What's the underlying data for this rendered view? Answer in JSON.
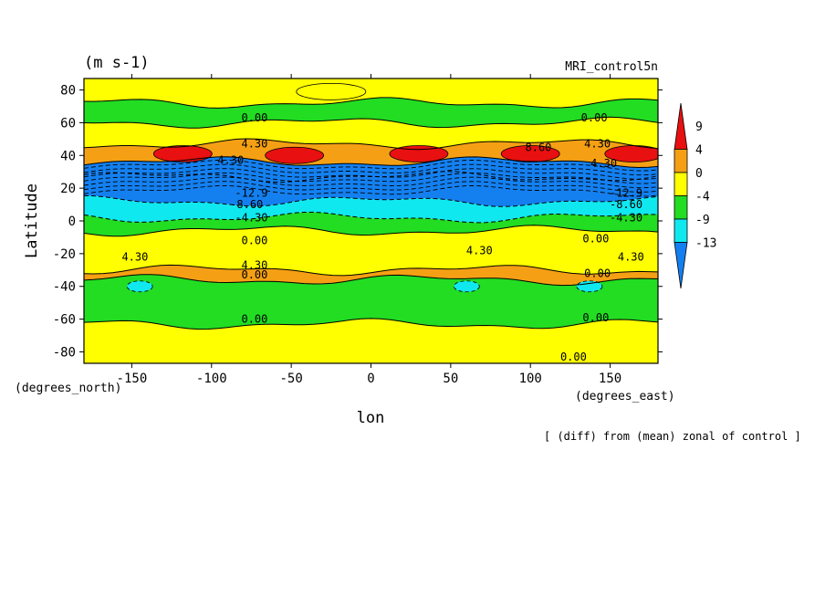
{
  "chart_data": {
    "type": "heatmap",
    "title_left": "(m s-1)",
    "title_right": "MRI_control5n",
    "xlabel": "lon",
    "ylabel": "Latitude",
    "x_units": "(degrees_east)",
    "y_units": "(degrees_north)",
    "footnote": "[ (diff) from (mean) zonal of control ]",
    "xlim": [
      -180,
      180
    ],
    "ylim": [
      -87,
      87
    ],
    "x_ticks": [
      -150,
      -100,
      -50,
      0,
      50,
      100,
      150
    ],
    "x_tick_labels": [
      "-150",
      "-100",
      "-50",
      "0",
      "50",
      "100",
      "150"
    ],
    "y_ticks": [
      80,
      60,
      40,
      20,
      0,
      -20,
      -40,
      -60,
      -80
    ],
    "y_tick_labels": [
      "80",
      "60",
      "40",
      "20",
      "0",
      "-20",
      "-40",
      "-60",
      "-80"
    ],
    "colorbar": {
      "labels": [
        "9",
        "4",
        "0",
        "-4",
        "-9",
        "-13"
      ],
      "colors": [
        "#e81010",
        "#f5a014",
        "#ffff00",
        "#22dd22",
        "#10e8f0",
        "#1480f0"
      ],
      "extend": "both"
    },
    "bands": [
      {
        "lat_from": 87,
        "lat_to": 72,
        "class": "0 to 4",
        "color": "#ffff00"
      },
      {
        "lat_from": 72,
        "lat_to": 60,
        "class": "-4 to 0",
        "color": "#22dd22"
      },
      {
        "lat_from": 60,
        "lat_to": 47,
        "class": "0 to 4",
        "color": "#ffff00"
      },
      {
        "lat_from": 47,
        "lat_to": 36,
        "class": "4 to 9",
        "color": "#f5a014"
      },
      {
        "lat_from": 36,
        "lat_to": 27,
        "class": "-13 to -9",
        "color": "#1480f0"
      },
      {
        "lat_from": 27,
        "lat_to": 12,
        "class": "-13 to -9",
        "color": "#1480f0"
      },
      {
        "lat_from": 12,
        "lat_to": 2,
        "class": "-9 to -4",
        "color": "#10e8f0"
      },
      {
        "lat_from": 2,
        "lat_to": -6,
        "class": "-4 to 0",
        "color": "#22dd22"
      },
      {
        "lat_from": -6,
        "lat_to": -30,
        "class": "0 to 4",
        "color": "#ffff00"
      },
      {
        "lat_from": -30,
        "lat_to": -36,
        "class": "4 to 9",
        "color": "#f5a014"
      },
      {
        "lat_from": -36,
        "lat_to": -63,
        "class": "-4 to 0",
        "color": "#22dd22"
      },
      {
        "lat_from": -63,
        "lat_to": -87,
        "class": "0 to 4",
        "color": "#ffff00"
      }
    ],
    "maxima": [
      {
        "lon": -118,
        "lat": 41,
        "class": ">9",
        "color": "#e81010"
      },
      {
        "lon": -48,
        "lat": 40,
        "class": ">9",
        "color": "#e81010"
      },
      {
        "lon": 30,
        "lat": 41,
        "class": ">9",
        "color": "#e81010"
      },
      {
        "lon": 100,
        "lat": 41,
        "class": ">9",
        "color": "#e81010"
      },
      {
        "lon": 165,
        "lat": 41,
        "class": ">9",
        "color": "#e81010"
      },
      {
        "lon": 60,
        "lat": -40,
        "class": "-9 to -4",
        "color": "#10e8f0"
      },
      {
        "lon": -145,
        "lat": -40,
        "class": "-9 to -4",
        "color": "#10e8f0"
      },
      {
        "lon": 137,
        "lat": -40,
        "class": "-9 to -4",
        "color": "#10e8f0"
      },
      {
        "lon": -25,
        "lat": 79,
        "class": "0 to 4",
        "color": "#ffff00"
      }
    ],
    "contour_labels": [
      {
        "text": "0.00",
        "lon": -73,
        "lat": 63
      },
      {
        "text": "0.00",
        "lon": 140,
        "lat": 63
      },
      {
        "text": "4.30",
        "lon": -73,
        "lat": 47
      },
      {
        "text": "4.30",
        "lon": 142,
        "lat": 47
      },
      {
        "text": "8.60",
        "lon": 105,
        "lat": 45
      },
      {
        "text": "4.30",
        "lon": -88,
        "lat": 37
      },
      {
        "text": "4.30",
        "lon": 146,
        "lat": 35
      },
      {
        "text": "-12.9",
        "lon": -75,
        "lat": 17
      },
      {
        "text": "-12.9",
        "lon": 160,
        "lat": 17
      },
      {
        "text": "-8.60",
        "lon": -78,
        "lat": 10
      },
      {
        "text": "-8.60",
        "lon": 160,
        "lat": 10
      },
      {
        "text": "-4.30",
        "lon": -75,
        "lat": 2
      },
      {
        "text": "-4.30",
        "lon": 160,
        "lat": 2
      },
      {
        "text": "0.00",
        "lon": -73,
        "lat": -12
      },
      {
        "text": "0.00",
        "lon": 141,
        "lat": -11
      },
      {
        "text": "4.30",
        "lon": 68,
        "lat": -18
      },
      {
        "text": "4.30",
        "lon": -148,
        "lat": -22
      },
      {
        "text": "4.30",
        "lon": 163,
        "lat": -22
      },
      {
        "text": "4.30",
        "lon": -73,
        "lat": -27
      },
      {
        "text": "0.00",
        "lon": -73,
        "lat": -33
      },
      {
        "text": "0.00",
        "lon": 142,
        "lat": -32
      },
      {
        "text": "0.00",
        "lon": -73,
        "lat": -60
      },
      {
        "text": "0.00",
        "lon": 141,
        "lat": -59
      },
      {
        "text": "0.00",
        "lon": 127,
        "lat": -83
      }
    ]
  }
}
